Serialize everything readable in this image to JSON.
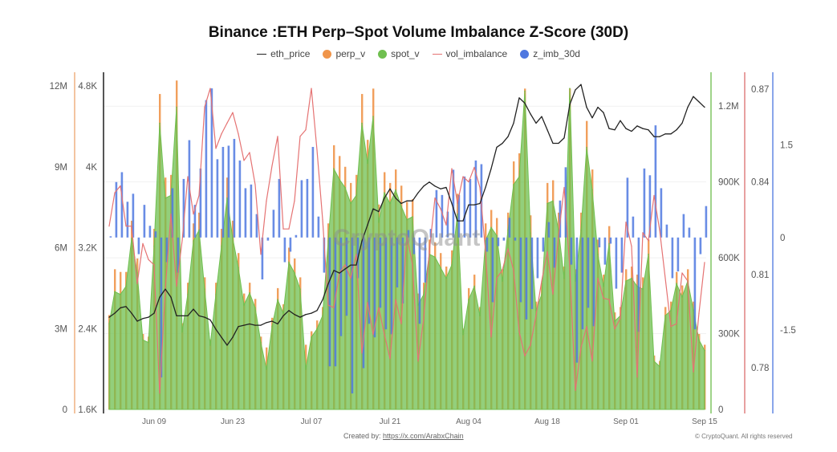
{
  "watermark": "CryptoQuant",
  "footer": {
    "created_label": "Created by:",
    "link_text": "https://x.com/ArabxChain",
    "copyright": "© CryptoQuant. All rights reserved"
  },
  "chart_data": {
    "type": "combo",
    "title": "Binance :ETH Perp–Spot Volume Imbalance Z-Score (30D)",
    "legend_position": "top-center",
    "legend": [
      {
        "name": "eth_price",
        "marker": "line",
        "color": "#222222"
      },
      {
        "name": "perp_v",
        "marker": "dot",
        "color": "#f0954a"
      },
      {
        "name": "spot_v",
        "marker": "dot",
        "color": "#6fbf4f"
      },
      {
        "name": "vol_imbalance",
        "marker": "line",
        "color": "#e57373"
      },
      {
        "name": "z_imb_30d",
        "marker": "dot",
        "color": "#4f78e0"
      }
    ],
    "x": [
      "Jun 01",
      "Jun 02",
      "Jun 03",
      "Jun 04",
      "Jun 05",
      "Jun 06",
      "Jun 07",
      "Jun 08",
      "Jun 09",
      "Jun 10",
      "Jun 11",
      "Jun 12",
      "Jun 13",
      "Jun 14",
      "Jun 15",
      "Jun 16",
      "Jun 17",
      "Jun 18",
      "Jun 19",
      "Jun 20",
      "Jun 21",
      "Jun 22",
      "Jun 23",
      "Jun 24",
      "Jun 25",
      "Jun 26",
      "Jun 27",
      "Jun 28",
      "Jun 29",
      "Jun 30",
      "Jul 01",
      "Jul 02",
      "Jul 03",
      "Jul 04",
      "Jul 05",
      "Jul 06",
      "Jul 07",
      "Jul 08",
      "Jul 09",
      "Jul 10",
      "Jul 11",
      "Jul 12",
      "Jul 13",
      "Jul 14",
      "Jul 15",
      "Jul 16",
      "Jul 17",
      "Jul 18",
      "Jul 19",
      "Jul 20",
      "Jul 21",
      "Jul 22",
      "Jul 23",
      "Jul 24",
      "Jul 25",
      "Jul 26",
      "Jul 27",
      "Jul 28",
      "Jul 29",
      "Jul 30",
      "Jul 31",
      "Aug 01",
      "Aug 02",
      "Aug 03",
      "Aug 04",
      "Aug 05",
      "Aug 06",
      "Aug 07",
      "Aug 08",
      "Aug 09",
      "Aug 10",
      "Aug 11",
      "Aug 12",
      "Aug 13",
      "Aug 14",
      "Aug 15",
      "Aug 16",
      "Aug 17",
      "Aug 18",
      "Aug 19",
      "Aug 20",
      "Aug 21",
      "Aug 22",
      "Aug 23",
      "Aug 24",
      "Aug 25",
      "Aug 26",
      "Aug 27",
      "Aug 28",
      "Aug 29",
      "Aug 30",
      "Aug 31",
      "Sep 01",
      "Sep 02",
      "Sep 03",
      "Sep 04",
      "Sep 05",
      "Sep 06",
      "Sep 07",
      "Sep 08",
      "Sep 09",
      "Sep 10",
      "Sep 11",
      "Sep 12",
      "Sep 13",
      "Sep 14",
      "Sep 15"
    ],
    "x_ticks": [
      "Jun 09",
      "Jun 23",
      "Jul 07",
      "Jul 21",
      "Aug 04",
      "Aug 18",
      "Sep 01",
      "Sep 15"
    ],
    "axes": {
      "perp_v": {
        "side": "left-outer",
        "range": [
          0,
          12000000
        ],
        "ticks": [
          0,
          3000000,
          6000000,
          9000000,
          12000000
        ],
        "tick_labels": [
          "0",
          "3M",
          "6M",
          "9M",
          "12M"
        ],
        "color": "#f3c4a0"
      },
      "eth_price": {
        "side": "left-inner",
        "range": [
          1600,
          4800
        ],
        "ticks": [
          1600,
          2400,
          3200,
          4000,
          4800
        ],
        "tick_labels": [
          "1.6K",
          "2.4K",
          "3.2K",
          "4K",
          "4.8K"
        ],
        "color": "#555555"
      },
      "spot_v": {
        "side": "right-1",
        "range": [
          0,
          1280000
        ],
        "ticks": [
          0,
          300000,
          600000,
          900000,
          1200000
        ],
        "tick_labels": [
          "0",
          "300K",
          "600K",
          "900K",
          "1.2M"
        ],
        "color": "#9fd48a"
      },
      "vol_imbalance": {
        "side": "right-2",
        "range": [
          0.7665,
          0.871
        ],
        "ticks": [
          0.78,
          0.81,
          0.84,
          0.87
        ],
        "tick_labels": [
          "0.78",
          "0.81",
          "0.84",
          "0.87"
        ],
        "color": "#e8a0a0"
      },
      "z_imb_30d": {
        "side": "right-3",
        "range": [
          -2.79,
          2.46
        ],
        "ticks": [
          -1.5,
          0,
          1.5
        ],
        "tick_labels": [
          "-1.5",
          "0",
          "1.5"
        ],
        "color": "#8aa6ea"
      }
    },
    "series": [
      {
        "name": "eth_price",
        "kind": "line",
        "axis": "eth_price",
        "color": "#222222",
        "values": [
          2512,
          2552,
          2605,
          2618,
          2552,
          2473,
          2499,
          2512,
          2552,
          2711,
          2790,
          2711,
          2526,
          2526,
          2526,
          2592,
          2526,
          2512,
          2486,
          2393,
          2314,
          2235,
          2314,
          2420,
          2433,
          2446,
          2433,
          2433,
          2459,
          2473,
          2446,
          2526,
          2578,
          2539,
          2512,
          2539,
          2552,
          2578,
          2684,
          2843,
          2975,
          2949,
          2989,
          3028,
          3028,
          3266,
          3425,
          3584,
          3557,
          3690,
          3782,
          3690,
          3637,
          3663,
          3663,
          3743,
          3809,
          3849,
          3809,
          3782,
          3796,
          3637,
          3465,
          3465,
          3624,
          3624,
          3637,
          3796,
          3981,
          4193,
          4232,
          4298,
          4431,
          4682,
          4629,
          4523,
          4431,
          4497,
          4365,
          4232,
          4232,
          4285,
          4616,
          4761,
          4814,
          4589,
          4484,
          4589,
          4536,
          4378,
          4365,
          4457,
          4378,
          4351,
          4404,
          4378,
          4365,
          4298,
          4298,
          4325,
          4325,
          4365,
          4431,
          4589,
          4695,
          4642,
          4589
        ]
      },
      {
        "name": "perp_v",
        "kind": "bar",
        "axis": "perp_v",
        "unit": "M",
        "color": "#f0954a",
        "values": [
          3.5,
          5.2,
          5.1,
          5.1,
          7.0,
          5.6,
          2.8,
          2.7,
          6.7,
          11.7,
          8.6,
          8.7,
          12.2,
          3.2,
          4.7,
          6.9,
          7.3,
          4.9,
          2.6,
          4.7,
          6.7,
          8.6,
          7.0,
          5.8,
          4.3,
          4.7,
          4.1,
          2.7,
          2.3,
          3.4,
          4.5,
          3.9,
          6.0,
          5.6,
          4.9,
          2.4,
          2.9,
          3.3,
          3.8,
          6.9,
          9.8,
          9.4,
          9.0,
          8.4,
          8.7,
          11.7,
          10.0,
          11.9,
          7.6,
          8.8,
          8.4,
          8.9,
          8.3,
          7.7,
          7.8,
          4.3,
          4.7,
          6.3,
          6.2,
          5.8,
          5.3,
          5.9,
          8.0,
          3.0,
          4.5,
          5.0,
          3.8,
          6.9,
          7.4,
          7.1,
          5.2,
          7.3,
          9.2,
          9.5,
          11.9,
          7.2,
          4.0,
          4.7,
          8.4,
          8.5,
          7.3,
          5.3,
          11.9,
          5.2,
          7.3,
          10.7,
          8.9,
          6.3,
          5.0,
          6.8,
          3.6,
          3.8,
          5.2,
          5.3,
          5.0,
          4.9,
          6.3,
          2.0,
          1.8,
          3.8,
          4.0,
          5.1,
          4.6,
          5.2,
          4.0,
          2.8,
          2.4
        ]
      },
      {
        "name": "spot_v",
        "kind": "area",
        "axis": "spot_v",
        "unit": "K",
        "color": "#6fbf4f",
        "values": [
          339,
          466,
          455,
          487,
          677,
          540,
          275,
          265,
          646,
          1132,
          836,
          847,
          1196,
          307,
          455,
          667,
          709,
          476,
          254,
          455,
          646,
          836,
          677,
          561,
          413,
          461,
          402,
          265,
          159,
          328,
          434,
          381,
          582,
          540,
          476,
          159,
          286,
          318,
          371,
          667,
          952,
          910,
          878,
          815,
          847,
          1132,
          974,
          1159,
          741,
          857,
          815,
          868,
          804,
          751,
          762,
          413,
          455,
          614,
          603,
          561,
          519,
          572,
          773,
          296,
          434,
          487,
          371,
          667,
          720,
          688,
          508,
          709,
          889,
          921,
          1259,
          698,
          392,
          455,
          815,
          825,
          709,
          519,
          1270,
          508,
          709,
          1037,
          868,
          614,
          487,
          656,
          349,
          371,
          508,
          519,
          487,
          476,
          614,
          191,
          170,
          371,
          392,
          498,
          445,
          508,
          392,
          275,
          233
        ]
      },
      {
        "name": "vol_imbalance",
        "kind": "line",
        "axis": "vol_imbalance",
        "color": "#e57373",
        "values": [
          0.8257,
          0.8365,
          0.8387,
          0.8257,
          0.8257,
          0.8071,
          0.8201,
          0.8149,
          0.8132,
          0.7717,
          0.8054,
          0.8296,
          0.8063,
          0.821,
          0.8417,
          0.8296,
          0.8356,
          0.8642,
          0.8702,
          0.8508,
          0.8555,
          0.859,
          0.8624,
          0.8555,
          0.8469,
          0.8495,
          0.8391,
          0.8166,
          0.8339,
          0.8452,
          0.8547,
          0.8248,
          0.8248,
          0.8339,
          0.8547,
          0.8568,
          0.8702,
          0.8503,
          0.8279,
          0.8002,
          0.7994,
          0.8106,
          0.8132,
          0.8089,
          0.8166,
          0.7847,
          0.8011,
          0.7907,
          0.7994,
          0.7907,
          0.7829,
          0.802,
          0.7942,
          0.8227,
          0.8132,
          0.7821,
          0.7959,
          0.8175,
          0.8348,
          0.8313,
          0.8261,
          0.8443,
          0.8331,
          0.8417,
          0.84,
          0.8447,
          0.8382,
          0.8175,
          0.7899,
          0.8089,
          0.8115,
          0.8184,
          0.8115,
          0.7916,
          0.7838,
          0.7873,
          0.7968,
          0.808,
          0.8175,
          0.8037,
          0.8227,
          0.8382,
          0.8123,
          0.7726,
          0.7864,
          0.7933,
          0.7821,
          0.8089,
          0.8024,
          0.802,
          0.7925,
          0.7959,
          0.827,
          0.8192,
          0.7769,
          0.8236,
          0.821,
          0.8356,
          0.8244,
          0.8089,
          0.7933,
          0.7942,
          0.8106,
          0.808,
          0.7786,
          0.7976,
          0.814
        ]
      },
      {
        "name": "z_imb_30d",
        "kind": "bar",
        "axis": "z_imb_30d",
        "color": "#4f78e0",
        "values": [
          0.02,
          0.9,
          1.06,
          0.58,
          0.71,
          -0.27,
          0.53,
          0.19,
          0.1,
          -2.27,
          -0.4,
          0.8,
          -0.57,
          0.95,
          1.58,
          0.53,
          1.12,
          2.23,
          2.42,
          1.27,
          1.47,
          1.49,
          1.6,
          1.25,
          0.8,
          0.86,
          0.38,
          -0.68,
          -0.05,
          0.45,
          0.95,
          -0.4,
          -0.23,
          0.04,
          0.93,
          0.95,
          1.47,
          0.34,
          -0.57,
          -2.09,
          -2.09,
          -1.6,
          -1.27,
          -2.53,
          -0.66,
          -2.12,
          -1.4,
          -1.62,
          -1.14,
          -1.49,
          -1.57,
          -0.81,
          -1.07,
          0.12,
          -0.27,
          -1.4,
          -0.73,
          0.14,
          0.77,
          0.69,
          0.42,
          1.1,
          0.69,
          0.99,
          0.95,
          1.25,
          1.19,
          -0.23,
          -1.05,
          -0.14,
          -0.05,
          0.32,
          -0.05,
          -1.05,
          -1.33,
          -1.16,
          -0.66,
          -0.23,
          0.25,
          -0.49,
          0.6,
          1.14,
          -0.44,
          -2.03,
          -1.49,
          -1.14,
          -1.44,
          -0.16,
          -0.44,
          -0.1,
          -0.83,
          -0.57,
          0.97,
          0.34,
          -1.53,
          1.12,
          1.01,
          1.82,
          0.8,
          0.21,
          -0.66,
          -0.55,
          0.38,
          0.16,
          -1.49,
          -0.27,
          0.51
        ]
      }
    ]
  }
}
